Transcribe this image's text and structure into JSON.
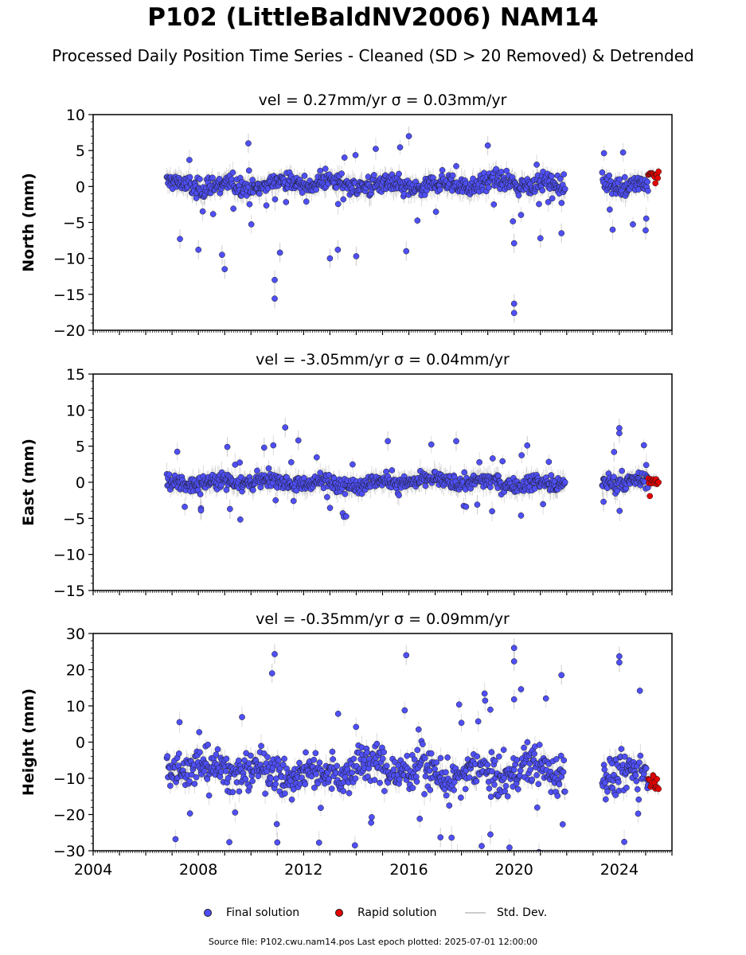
{
  "title": "P102 (LittleBaldNV2006) NAM14",
  "subtitle": "Processed Daily Position Time Series - Cleaned (SD > 20 Removed) & Detrended",
  "footer": "Source file: P102.cwu.nam14.pos  Last epoch plotted: 2025-07-01 12:00:00",
  "legend": {
    "final_label": "Final solution",
    "rapid_label": "Rapid solution",
    "std_label": "Std. Dev."
  },
  "colors": {
    "final": "#4f4ff7",
    "final_edge": "#1a1a1a",
    "rapid": "#e50000",
    "std": "#999999"
  },
  "chart_data": [
    {
      "type": "scatter",
      "title": "vel = 0.27mm/yr   σ = 0.03mm/yr",
      "ylabel": "North (mm)",
      "xlabel": "",
      "xlim": [
        2004,
        2026
      ],
      "ylim": [
        -20,
        10
      ],
      "yticks": [
        -20,
        -15,
        -10,
        -5,
        0,
        5,
        10
      ],
      "xticks": [
        "2004",
        "2008",
        "2012",
        "2016",
        "2020",
        "2024"
      ],
      "grid": false,
      "series": [
        {
          "name": "Final solution",
          "span": [
            2006.8,
            2021.95
          ],
          "span2": [
            2023.35,
            2025.1
          ],
          "base": 0.3,
          "scatter": 1.2
        },
        {
          "name": "Rapid solution",
          "span": [
            2025.1,
            2025.5
          ],
          "base": 1.3,
          "scatter": 0.6
        }
      ],
      "outliers": [
        [
          2007.3,
          -7.3
        ],
        [
          2008.0,
          -8.8
        ],
        [
          2008.9,
          -9.5
        ],
        [
          2009.0,
          -11.5
        ],
        [
          2009.9,
          6.0
        ],
        [
          2010.9,
          -13.0
        ],
        [
          2010.9,
          -15.6
        ],
        [
          2011.1,
          -9.2
        ],
        [
          2013.0,
          -10.0
        ],
        [
          2013.3,
          -8.8
        ],
        [
          2014.0,
          -9.7
        ],
        [
          2016.0,
          7.0
        ],
        [
          2015.9,
          -9.0
        ],
        [
          2019.0,
          5.7
        ],
        [
          2020.0,
          -16.3
        ],
        [
          2020.0,
          -17.6
        ],
        [
          2020.0,
          -7.9
        ],
        [
          2021.0,
          -7.2
        ],
        [
          2021.8,
          -6.5
        ],
        [
          2025.0,
          -6.1
        ]
      ]
    },
    {
      "type": "scatter",
      "title": "vel = -3.05mm/yr   σ = 0.04mm/yr",
      "ylabel": "East (mm)",
      "xlabel": "",
      "xlim": [
        2004,
        2026
      ],
      "ylim": [
        -15,
        15
      ],
      "yticks": [
        -15,
        -10,
        -5,
        0,
        5,
        10,
        15
      ],
      "xticks": [
        "2004",
        "2008",
        "2012",
        "2016",
        "2020",
        "2024"
      ],
      "grid": false,
      "series": [
        {
          "name": "Final solution",
          "span": [
            2006.8,
            2021.95
          ],
          "span2": [
            2023.35,
            2025.1
          ],
          "base": 0.0,
          "scatter": 1.0
        },
        {
          "name": "Rapid solution",
          "span": [
            2025.1,
            2025.5
          ],
          "base": 0.0,
          "scatter": 0.4
        }
      ],
      "outliers": [
        [
          2011.3,
          7.6
        ],
        [
          2011.8,
          5.8
        ],
        [
          2015.2,
          5.7
        ],
        [
          2017.8,
          5.7
        ],
        [
          2020.5,
          5.1
        ],
        [
          2024.0,
          7.5
        ],
        [
          2024.0,
          6.8
        ],
        [
          2023.8,
          4.2
        ],
        [
          2009.1,
          4.9
        ],
        [
          2010.5,
          4.8
        ],
        [
          2023.4,
          -2.7
        ],
        [
          2009.2,
          -3.7
        ],
        [
          2018.6,
          -3.1
        ],
        [
          2008.1,
          -3.9
        ]
      ]
    },
    {
      "type": "scatter",
      "title": "vel = -0.35mm/yr   σ = 0.09mm/yr",
      "ylabel": "Height (mm)",
      "xlabel": "",
      "xlim": [
        2004,
        2026
      ],
      "ylim": [
        -30,
        30
      ],
      "yticks": [
        -30,
        -20,
        -10,
        0,
        10,
        20,
        30
      ],
      "xticks": [
        "2004",
        "2008",
        "2012",
        "2016",
        "2020",
        "2024"
      ],
      "grid": false,
      "series": [
        {
          "name": "Final solution",
          "span": [
            2006.8,
            2021.95
          ],
          "span2": [
            2023.35,
            2025.1
          ],
          "base": -8.0,
          "scatter": 5.0
        },
        {
          "name": "Rapid solution",
          "span": [
            2025.1,
            2025.5
          ],
          "base": -10.0,
          "scatter": 2.0
        }
      ],
      "outliers": [
        [
          2010.9,
          24.3
        ],
        [
          2010.8,
          19.0
        ],
        [
          2015.9,
          24.0
        ],
        [
          2020.0,
          26.0
        ],
        [
          2020.0,
          22.3
        ],
        [
          2024.0,
          23.7
        ],
        [
          2024.0,
          22.0
        ],
        [
          2021.8,
          18.5
        ],
        [
          2011.0,
          -27.7
        ],
        [
          2019.1,
          -25.5
        ],
        [
          2017.2,
          -26.3
        ],
        [
          2020.0,
          11.8
        ]
      ]
    }
  ]
}
